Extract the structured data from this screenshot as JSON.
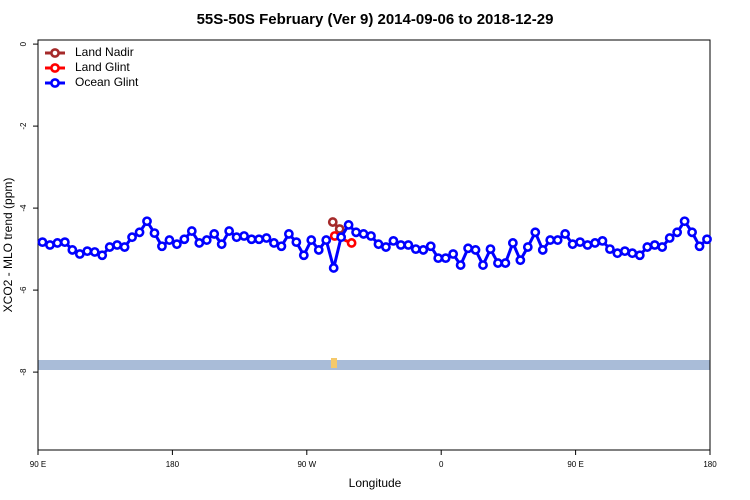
{
  "chart_data": {
    "type": "line",
    "title": "55S-50S February (Ver 9)   2014-09-06 to 2018-12-29",
    "x_label": "Longitude",
    "y_label": "XCO2 - MLO trend (ppm)",
    "xlim": [
      90,
      540
    ],
    "ylim": [
      -9.9,
      0.1
    ],
    "xticks": [
      {
        "value": 90,
        "label": "90 E"
      },
      {
        "value": 180,
        "label": "180"
      },
      {
        "value": 270,
        "label": "90 W"
      },
      {
        "value": 360,
        "label": "0"
      },
      {
        "value": 450,
        "label": "90 E"
      },
      {
        "value": 540,
        "label": "180"
      }
    ],
    "yticks": [
      0,
      -2,
      -4,
      -6,
      -8
    ],
    "legend": "top-left",
    "series": [
      {
        "name": "Land Nadir",
        "color": "#a52a2a",
        "x": [
          287.4,
          292
        ],
        "values": [
          -4.34,
          -4.51
        ]
      },
      {
        "name": "Land Glint",
        "color": "#ff0000",
        "x": [
          288.7,
          300
        ],
        "values": [
          -4.68,
          -4.85
        ]
      },
      {
        "name": "Ocean Glint",
        "color": "#0000ff",
        "x": [
          93,
          98,
          103,
          108,
          113,
          118,
          123,
          128,
          133,
          138,
          143,
          148,
          153,
          158,
          163,
          168,
          173,
          178,
          183,
          188,
          193,
          198,
          203,
          208,
          213,
          218,
          223,
          228,
          233,
          238,
          243,
          248,
          253,
          258,
          263,
          268,
          273,
          278,
          283,
          288,
          293,
          298,
          303,
          308,
          313,
          318,
          323,
          328,
          333,
          338,
          343,
          348,
          353,
          358,
          363,
          368,
          373,
          378,
          383,
          388,
          393,
          398,
          403,
          408,
          413,
          418,
          423,
          428,
          433,
          438,
          443,
          448,
          453,
          458,
          463,
          468,
          473,
          478,
          483,
          488,
          493,
          498,
          503,
          508,
          513,
          518,
          523,
          528,
          533,
          538
        ],
        "values": [
          -4.83,
          -4.9,
          -4.85,
          -4.83,
          -5.02,
          -5.12,
          -5.05,
          -5.07,
          -5.15,
          -4.95,
          -4.9,
          -4.95,
          -4.71,
          -4.59,
          -4.32,
          -4.61,
          -4.93,
          -4.78,
          -4.88,
          -4.76,
          -4.56,
          -4.85,
          -4.78,
          -4.63,
          -4.88,
          -4.56,
          -4.71,
          -4.68,
          -4.76,
          -4.76,
          -4.73,
          -4.85,
          -4.93,
          -4.63,
          -4.83,
          -5.15,
          -4.78,
          -5.02,
          -4.78,
          -5.46,
          -4.71,
          -4.41,
          -4.59,
          -4.63,
          -4.68,
          -4.88,
          -4.95,
          -4.8,
          -4.9,
          -4.9,
          -5.0,
          -5.02,
          -4.93,
          -5.22,
          -5.22,
          -5.12,
          -5.39,
          -4.98,
          -5.02,
          -5.39,
          -5.0,
          -5.34,
          -5.34,
          -4.85,
          -5.27,
          -4.95,
          -4.59,
          -5.02,
          -4.78,
          -4.78,
          -4.63,
          -4.88,
          -4.83,
          -4.9,
          -4.85,
          -4.8,
          -5.0,
          -5.1,
          -5.05,
          -5.1,
          -5.15,
          -4.95,
          -4.9,
          -4.95,
          -4.73,
          -4.59,
          -4.32,
          -4.59,
          -4.93,
          -4.76
        ]
      }
    ]
  }
}
